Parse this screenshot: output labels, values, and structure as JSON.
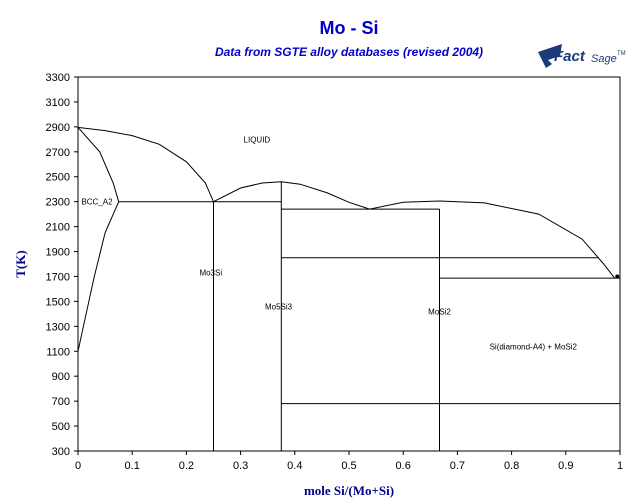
{
  "chart_data": {
    "type": "phase-diagram",
    "title": "Mo - Si",
    "subtitle": "Data from SGTE alloy databases (revised 2004)",
    "xlabel": "mole Si/(Mo+Si)",
    "ylabel": "T(K)",
    "xlim": [
      0,
      1
    ],
    "ylim": [
      300,
      3300
    ],
    "x_ticks": [
      "0",
      "0.1",
      "0.2",
      "0.3",
      "0.4",
      "0.5",
      "0.6",
      "0.7",
      "0.8",
      "0.9",
      "1"
    ],
    "y_ticks": [
      "300",
      "500",
      "700",
      "900",
      "1100",
      "1300",
      "1500",
      "1700",
      "1900",
      "2100",
      "2300",
      "2500",
      "2700",
      "2900",
      "3100",
      "3300"
    ],
    "grid": false,
    "region_labels": [
      {
        "text": "LIQUID",
        "x": 0.33,
        "y": 2800
      },
      {
        "text": "BCC_A2",
        "x": 0.035,
        "y": 2300
      },
      {
        "text": "Mo3Si",
        "x": 0.245,
        "y": 1730
      },
      {
        "text": "Mo5Si3",
        "x": 0.37,
        "y": 1460
      },
      {
        "text": "MoSi2",
        "x": 0.667,
        "y": 1420
      },
      {
        "text": "Si(diamond-A4) + MoSi2",
        "x": 0.84,
        "y": 1140
      }
    ],
    "lines": [
      {
        "name": "liquidus-mo-side",
        "points": [
          [
            0,
            2896
          ],
          [
            0.05,
            2870
          ],
          [
            0.1,
            2830
          ],
          [
            0.15,
            2760
          ],
          [
            0.2,
            2620
          ],
          [
            0.235,
            2450
          ],
          [
            0.25,
            2300
          ]
        ]
      },
      {
        "name": "liquidus-mo5si3-dome",
        "points": [
          [
            0.25,
            2300
          ],
          [
            0.3,
            2410
          ],
          [
            0.34,
            2450
          ],
          [
            0.375,
            2460
          ],
          [
            0.41,
            2440
          ],
          [
            0.46,
            2370
          ],
          [
            0.5,
            2295
          ],
          [
            0.538,
            2240
          ]
        ]
      },
      {
        "name": "liquidus-mosi2-dome",
        "points": [
          [
            0.538,
            2240
          ],
          [
            0.6,
            2295
          ],
          [
            0.667,
            2305
          ],
          [
            0.75,
            2290
          ],
          [
            0.85,
            2200
          ],
          [
            0.93,
            2000
          ],
          [
            0.97,
            1800
          ],
          [
            0.99,
            1687
          ]
        ]
      },
      {
        "name": "solidus-bcc-upper",
        "points": [
          [
            0,
            2896
          ],
          [
            0.04,
            2700
          ],
          [
            0.065,
            2450
          ],
          [
            0.075,
            2300
          ]
        ]
      },
      {
        "name": "solvus-bcc-lower",
        "points": [
          [
            0.075,
            2300
          ],
          [
            0.05,
            2050
          ],
          [
            0.03,
            1700
          ],
          [
            0.01,
            1300
          ],
          [
            0.0,
            1100
          ]
        ]
      },
      {
        "name": "eutectic-bcc-mo3si",
        "points": [
          [
            0.075,
            2300
          ],
          [
            0.375,
            2300
          ]
        ]
      },
      {
        "name": "mo3si-phase",
        "points": [
          [
            0.25,
            2300
          ],
          [
            0.25,
            300
          ]
        ]
      },
      {
        "name": "mo5si3-phase",
        "points": [
          [
            0.375,
            2460
          ],
          [
            0.375,
            300
          ]
        ]
      },
      {
        "name": "eutectic-mo5si3-mosi2",
        "points": [
          [
            0.375,
            2240
          ],
          [
            0.667,
            2240
          ]
        ]
      },
      {
        "name": "mosi2-phase",
        "points": [
          [
            0.667,
            2240
          ],
          [
            0.667,
            300
          ]
        ]
      },
      {
        "name": "mo5si3-transition-1850",
        "points": [
          [
            0.375,
            1850
          ],
          [
            0.96,
            1850
          ]
        ]
      },
      {
        "name": "eutectic-mosi2-si",
        "points": [
          [
            0.667,
            1687
          ],
          [
            1.0,
            1687
          ]
        ]
      },
      {
        "name": "transition-680",
        "points": [
          [
            0.375,
            680
          ],
          [
            1.0,
            680
          ]
        ]
      },
      {
        "name": "si-side",
        "points": [
          [
            1.0,
            1687
          ],
          [
            1.0,
            300
          ]
        ]
      }
    ]
  },
  "logo": {
    "main": "Fact",
    "sub": "Sage",
    "tm": "TM"
  }
}
